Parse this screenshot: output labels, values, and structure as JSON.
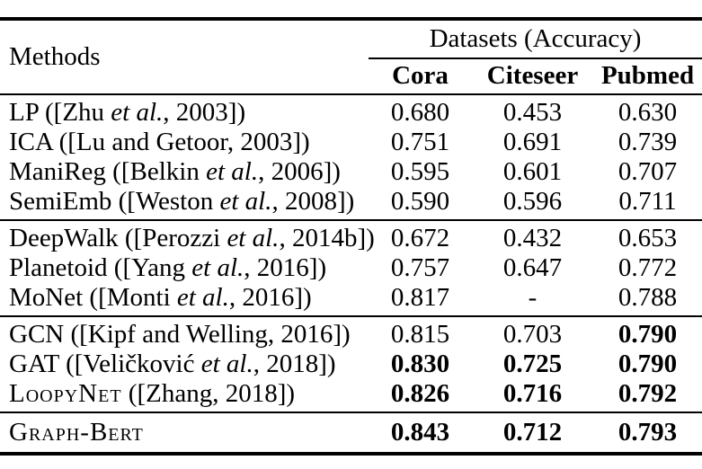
{
  "table": {
    "header": {
      "methods_label": "Methods",
      "datasets_label": "Datasets (Accuracy)",
      "columns": [
        "Cora",
        "Citeseer",
        "Pubmed"
      ]
    },
    "groups": [
      {
        "rows": [
          {
            "method": [
              {
                "t": "LP ([Zhu "
              },
              {
                "t": "et al.",
                "i": true
              },
              {
                "t": ", 2003])"
              }
            ],
            "values": [
              {
                "v": "0.680"
              },
              {
                "v": "0.453"
              },
              {
                "v": "0.630"
              }
            ]
          },
          {
            "method": [
              {
                "t": "ICA ([Lu and Getoor, 2003])"
              }
            ],
            "values": [
              {
                "v": "0.751"
              },
              {
                "v": "0.691"
              },
              {
                "v": "0.739"
              }
            ]
          },
          {
            "method": [
              {
                "t": "ManiReg ([Belkin "
              },
              {
                "t": "et al.",
                "i": true
              },
              {
                "t": ", 2006])"
              }
            ],
            "values": [
              {
                "v": "0.595"
              },
              {
                "v": "0.601"
              },
              {
                "v": "0.707"
              }
            ]
          },
          {
            "method": [
              {
                "t": "SemiEmb ([Weston "
              },
              {
                "t": "et al.",
                "i": true
              },
              {
                "t": ", 2008])"
              }
            ],
            "values": [
              {
                "v": "0.590"
              },
              {
                "v": "0.596"
              },
              {
                "v": "0.711"
              }
            ]
          }
        ]
      },
      {
        "rows": [
          {
            "method": [
              {
                "t": "DeepWalk ([Perozzi "
              },
              {
                "t": "et al.",
                "i": true
              },
              {
                "t": ", 2014b])"
              }
            ],
            "values": [
              {
                "v": "0.672"
              },
              {
                "v": "0.432"
              },
              {
                "v": "0.653"
              }
            ]
          },
          {
            "method": [
              {
                "t": "Planetoid ([Yang "
              },
              {
                "t": "et al.",
                "i": true
              },
              {
                "t": ", 2016])"
              }
            ],
            "values": [
              {
                "v": "0.757"
              },
              {
                "v": "0.647"
              },
              {
                "v": "0.772"
              }
            ]
          },
          {
            "method": [
              {
                "t": "MoNet ([Monti "
              },
              {
                "t": "et al.",
                "i": true
              },
              {
                "t": ", 2016])"
              }
            ],
            "values": [
              {
                "v": "0.817"
              },
              {
                "v": "-"
              },
              {
                "v": "0.788"
              }
            ]
          }
        ]
      },
      {
        "rows": [
          {
            "method": [
              {
                "t": "GCN ([Kipf and Welling, 2016])"
              }
            ],
            "values": [
              {
                "v": "0.815"
              },
              {
                "v": "0.703"
              },
              {
                "v": "0.790",
                "b": true
              }
            ]
          },
          {
            "method": [
              {
                "t": "GAT ([Veličković "
              },
              {
                "t": "et al.",
                "i": true
              },
              {
                "t": ", 2018])"
              }
            ],
            "values": [
              {
                "v": "0.830",
                "b": true
              },
              {
                "v": "0.725",
                "b": true
              },
              {
                "v": "0.790",
                "b": true
              }
            ]
          },
          {
            "method": [
              {
                "t": "LoopyNet",
                "sc": true
              },
              {
                "t": " ([Zhang, 2018])"
              }
            ],
            "values": [
              {
                "v": "0.826",
                "b": true
              },
              {
                "v": "0.716",
                "b": true
              },
              {
                "v": "0.792",
                "b": true
              }
            ]
          }
        ]
      },
      {
        "rows": [
          {
            "method": [
              {
                "t": "Graph-Bert",
                "sc": true
              }
            ],
            "values": [
              {
                "v": "0.843",
                "b": true
              },
              {
                "v": "0.712",
                "b": true
              },
              {
                "v": "0.793",
                "b": true
              }
            ]
          }
        ]
      }
    ]
  }
}
